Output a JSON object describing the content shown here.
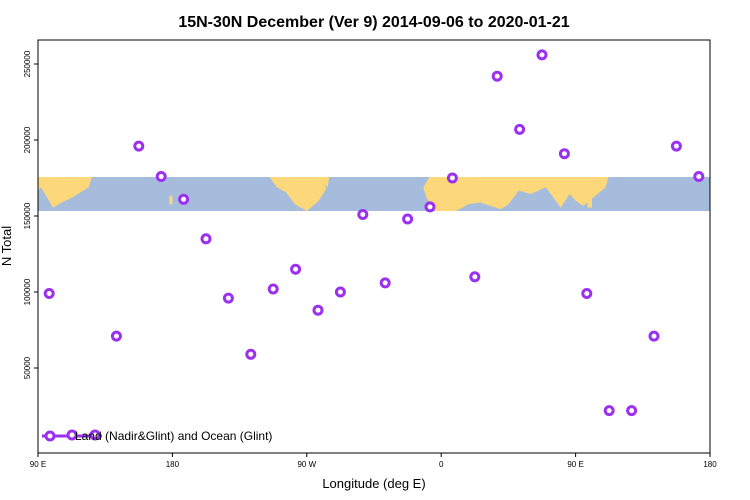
{
  "chart_data": {
    "type": "scatter",
    "title": "15N-30N December (Ver 9)   2014-09-06 to 2020-01-21",
    "xlabel": "Longitude (deg E)",
    "ylabel": "N Total",
    "x_ticks": [
      {
        "value": 90,
        "label": "90 E"
      },
      {
        "value": 180,
        "label": "180"
      },
      {
        "value": 270,
        "label": "90 W"
      },
      {
        "value": 360,
        "label": "0"
      },
      {
        "value": 450,
        "label": "90 E"
      },
      {
        "value": 540,
        "label": "180"
      }
    ],
    "y_ticks": [
      {
        "value": 50000,
        "label": "50000"
      },
      {
        "value": 100000,
        "label": "100000"
      },
      {
        "value": 150000,
        "label": "150000"
      },
      {
        "value": 200000,
        "label": "200000"
      },
      {
        "value": 250000,
        "label": "250000"
      }
    ],
    "xlim": [
      90,
      540
    ],
    "ylim": [
      20000,
      275000
    ],
    "series": [
      {
        "name": "Land (Nadir&Glint) and Ocean (Glint)",
        "color": "#9b30f0",
        "points": [
          {
            "x": 97.5,
            "y": 99000
          },
          {
            "x": 142.5,
            "y": 71000
          },
          {
            "x": 157.5,
            "y": 196000
          },
          {
            "x": 172.5,
            "y": 176000
          },
          {
            "x": 187.5,
            "y": 161000
          },
          {
            "x": 202.5,
            "y": 135000
          },
          {
            "x": 217.5,
            "y": 96000
          },
          {
            "x": 232.5,
            "y": 59000
          },
          {
            "x": 247.5,
            "y": 102000
          },
          {
            "x": 262.5,
            "y": 115000
          },
          {
            "x": 277.5,
            "y": 88000
          },
          {
            "x": 292.5,
            "y": 100000
          },
          {
            "x": 307.5,
            "y": 151000
          },
          {
            "x": 322.5,
            "y": 106000
          },
          {
            "x": 337.5,
            "y": 148000
          },
          {
            "x": 352.5,
            "y": 156000
          },
          {
            "x": 367.5,
            "y": 175000
          },
          {
            "x": 382.5,
            "y": 110000
          },
          {
            "x": 397.5,
            "y": 242000
          },
          {
            "x": 412.5,
            "y": 207000
          },
          {
            "x": 427.5,
            "y": 256000
          },
          {
            "x": 442.5,
            "y": 191000
          },
          {
            "x": 457.5,
            "y": 99000
          },
          {
            "x": 472.5,
            "y": 22000
          },
          {
            "x": 487.5,
            "y": 22000
          },
          {
            "x": 502.5,
            "y": 71000
          },
          {
            "x": 517.5,
            "y": 196000
          },
          {
            "x": 532.5,
            "y": 176000
          }
        ]
      }
    ],
    "legend": {
      "placement": "bottom-left",
      "label": "Land (Nadir&Glint) and Ocean (Glint)"
    },
    "map_band": {
      "ocean_color": "#a5bcdc",
      "land_color": "#fdd87a"
    },
    "grid": false
  }
}
